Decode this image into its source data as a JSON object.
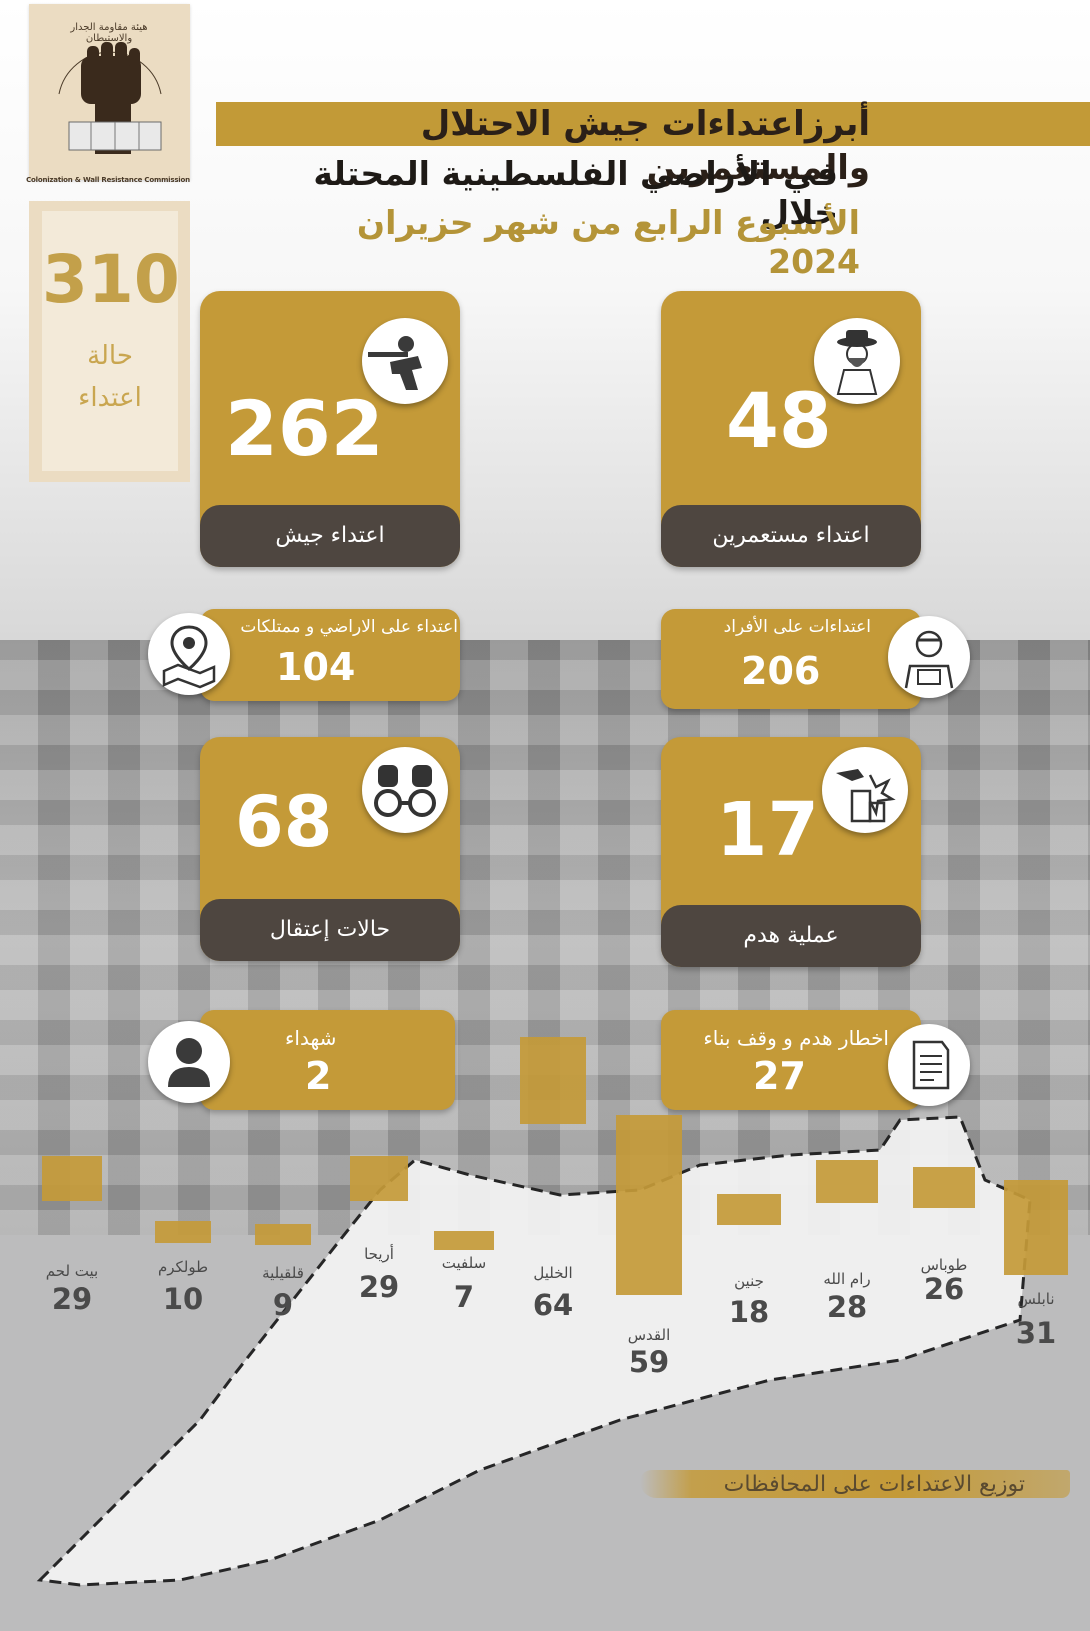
{
  "colors": {
    "gold": "#c49a38",
    "dark": "#4e4640",
    "beige": "#ebdcc2"
  },
  "logo": {
    "arabic_name": "هيئة مقاومة الجدار والاستيطان",
    "caption": "Colonization & Wall Resistance Commission",
    "icon": "raised-fist-icon"
  },
  "total": {
    "number": "310",
    "label_line1": "حالة",
    "label_line2": "اعتداء"
  },
  "header": {
    "title_line1": "أبرزاعتداءات جيش الاحتلال والمستعمرين",
    "title_line2": "في الأراضي الفلسطينية المحتلة خلال",
    "title_line3": "الأسبوع الرابع  من شهر حزيران  2024"
  },
  "cards": {
    "army": {
      "number": "262",
      "label": "اعتداء جيش",
      "icon": "soldier-icon"
    },
    "settlers": {
      "number": "48",
      "label": "اعتداء مستعمرين",
      "icon": "settler-icon"
    },
    "arrests": {
      "number": "68",
      "label": "حالات إعتقال",
      "icon": "handcuffs-icon"
    },
    "demolitions": {
      "number": "17",
      "label": "عملية هدم",
      "icon": "demolition-icon"
    }
  },
  "small_cards": {
    "land": {
      "label": "اعتداء على الاراضي و ممتلكات",
      "value": "104",
      "icon": "map-pin-icon"
    },
    "individuals": {
      "label": "اعتداءات على الأفراد",
      "value": "206",
      "icon": "injured-person-icon"
    },
    "martyrs": {
      "label": "شهداء",
      "value": "2",
      "icon": "person-icon"
    },
    "notices": {
      "label": "اخطار  هدم و وقف بناء",
      "value": "27",
      "icon": "document-icon"
    }
  },
  "chart_data": {
    "type": "bar",
    "categories": [
      "بيت لحم",
      "طولكرم",
      "قلقيلية",
      "أريحا",
      "سلفيت",
      "الخليل",
      "القدس",
      "جنين",
      "رام الله",
      "طوباس",
      "نابلس"
    ],
    "values": [
      29,
      10,
      9,
      29,
      7,
      64,
      59,
      18,
      28,
      26,
      31
    ]
  },
  "legend": {
    "text": "توزيع الاعتداءات على المحافظات"
  }
}
